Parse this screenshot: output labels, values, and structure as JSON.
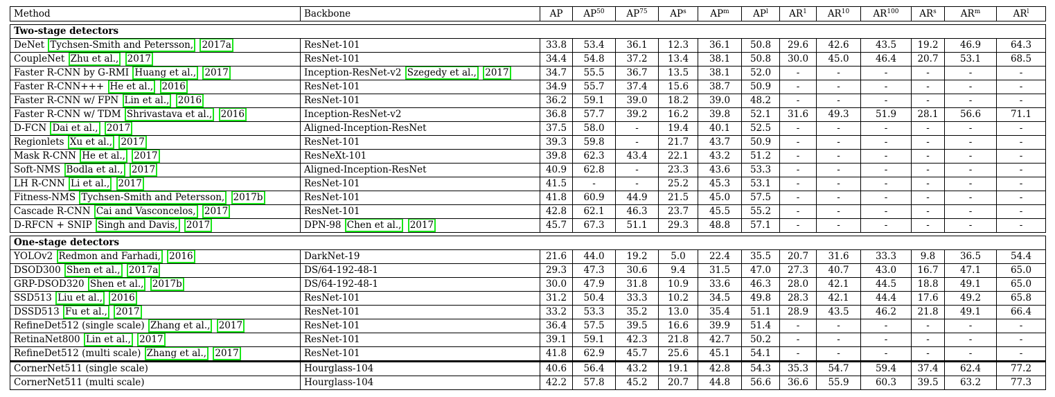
{
  "headers": {
    "method": "Method",
    "backbone": "Backbone",
    "metrics": [
      {
        "base": "AP",
        "sup": ""
      },
      {
        "base": "AP",
        "sup": "50"
      },
      {
        "base": "AP",
        "sup": "75"
      },
      {
        "base": "AP",
        "sup": "s"
      },
      {
        "base": "AP",
        "sup": "m"
      },
      {
        "base": "AP",
        "sup": "l"
      },
      {
        "base": "AR",
        "sup": "1"
      },
      {
        "base": "AR",
        "sup": "10"
      },
      {
        "base": "AR",
        "sup": "100"
      },
      {
        "base": "AR",
        "sup": "s"
      },
      {
        "base": "AR",
        "sup": "m"
      },
      {
        "base": "AR",
        "sup": "l"
      }
    ]
  },
  "groups": [
    {
      "title": "Two-stage detectors",
      "rows": [
        {
          "method": [
            "DeNet ",
            {
              "c": "Tychsen-Smith and Petersson,"
            },
            " ",
            {
              "c": "2017a"
            }
          ],
          "backbone": [
            "ResNet-101"
          ],
          "values": [
            "33.8",
            "53.4",
            "36.1",
            "12.3",
            "36.1",
            "50.8",
            "29.6",
            "42.6",
            "43.5",
            "19.2",
            "46.9",
            "64.3"
          ]
        },
        {
          "method": [
            "CoupleNet ",
            {
              "c": "Zhu et al.,"
            },
            " ",
            {
              "c": "2017"
            }
          ],
          "backbone": [
            "ResNet-101"
          ],
          "values": [
            "34.4",
            "54.8",
            "37.2",
            "13.4",
            "38.1",
            "50.8",
            "30.0",
            "45.0",
            "46.4",
            "20.7",
            "53.1",
            "68.5"
          ]
        },
        {
          "method": [
            "Faster R-CNN by G-RMI ",
            {
              "c": "Huang et al.,"
            },
            " ",
            {
              "c": "2017"
            }
          ],
          "backbone": [
            "Inception-ResNet-v2 ",
            {
              "c": "Szegedy et al.,"
            },
            " ",
            {
              "c": "2017"
            }
          ],
          "values": [
            "34.7",
            "55.5",
            "36.7",
            "13.5",
            "38.1",
            "52.0",
            "-",
            "-",
            "-",
            "-",
            "-",
            "-"
          ]
        },
        {
          "method": [
            "Faster R-CNN+++ ",
            {
              "c": "He et al.,"
            },
            " ",
            {
              "c": "2016"
            }
          ],
          "backbone": [
            "ResNet-101"
          ],
          "values": [
            "34.9",
            "55.7",
            "37.4",
            "15.6",
            "38.7",
            "50.9",
            "-",
            "-",
            "-",
            "-",
            "-",
            "-"
          ]
        },
        {
          "method": [
            "Faster R-CNN w/ FPN ",
            {
              "c": "Lin et al.,"
            },
            " ",
            {
              "c": "2016"
            }
          ],
          "backbone": [
            "ResNet-101"
          ],
          "values": [
            "36.2",
            "59.1",
            "39.0",
            "18.2",
            "39.0",
            "48.2",
            "-",
            "-",
            "-",
            "-",
            "-",
            "-"
          ]
        },
        {
          "method": [
            "Faster R-CNN w/ TDM ",
            {
              "c": "Shrivastava et al.,"
            },
            " ",
            {
              "c": "2016"
            }
          ],
          "backbone": [
            "Inception-ResNet-v2"
          ],
          "values": [
            "36.8",
            "57.7",
            "39.2",
            "16.2",
            "39.8",
            "52.1",
            "31.6",
            "49.3",
            "51.9",
            "28.1",
            "56.6",
            "71.1"
          ]
        },
        {
          "method": [
            "D-FCN ",
            {
              "c": "Dai et al.,"
            },
            " ",
            {
              "c": "2017"
            }
          ],
          "backbone": [
            "Aligned-Inception-ResNet"
          ],
          "values": [
            "37.5",
            "58.0",
            "-",
            "19.4",
            "40.1",
            "52.5",
            "-",
            "-",
            "-",
            "-",
            "-",
            "-"
          ]
        },
        {
          "method": [
            "Regionlets ",
            {
              "c": "Xu et al.,"
            },
            " ",
            {
              "c": "2017"
            }
          ],
          "backbone": [
            "ResNet-101"
          ],
          "values": [
            "39.3",
            "59.8",
            "-",
            "21.7",
            "43.7",
            "50.9",
            "-",
            "-",
            "-",
            "-",
            "-",
            "-"
          ]
        },
        {
          "method": [
            "Mask R-CNN ",
            {
              "c": "He et al.,"
            },
            " ",
            {
              "c": "2017"
            }
          ],
          "backbone": [
            "ResNeXt-101"
          ],
          "values": [
            "39.8",
            "62.3",
            "43.4",
            "22.1",
            "43.2",
            "51.2",
            "-",
            "-",
            "-",
            "-",
            "-",
            "-"
          ]
        },
        {
          "method": [
            "Soft-NMS ",
            {
              "c": "Bodla et al.,"
            },
            " ",
            {
              "c": "2017"
            }
          ],
          "backbone": [
            "Aligned-Inception-ResNet"
          ],
          "values": [
            "40.9",
            "62.8",
            "-",
            "23.3",
            "43.6",
            "53.3",
            "-",
            "-",
            "-",
            "-",
            "-",
            "-"
          ]
        },
        {
          "method": [
            "LH R-CNN ",
            {
              "c": "Li et al.,"
            },
            " ",
            {
              "c": "2017"
            }
          ],
          "backbone": [
            "ResNet-101"
          ],
          "values": [
            "41.5",
            "-",
            "-",
            "25.2",
            "45.3",
            "53.1",
            "-",
            "-",
            "-",
            "-",
            "-",
            "-"
          ]
        },
        {
          "method": [
            "Fitness-NMS ",
            {
              "c": "Tychsen-Smith and Petersson,"
            },
            " ",
            {
              "c": "2017b"
            }
          ],
          "backbone": [
            "ResNet-101"
          ],
          "values": [
            "41.8",
            "60.9",
            "44.9",
            "21.5",
            "45.0",
            "57.5",
            "-",
            "-",
            "-",
            "-",
            "-",
            "-"
          ]
        },
        {
          "method": [
            "Cascade R-CNN ",
            {
              "c": "Cai and Vasconcelos,"
            },
            " ",
            {
              "c": "2017"
            }
          ],
          "backbone": [
            "ResNet-101"
          ],
          "values": [
            "42.8",
            "62.1",
            "46.3",
            "23.7",
            "45.5",
            "55.2",
            "-",
            "-",
            "-",
            "-",
            "-",
            "-"
          ]
        },
        {
          "method": [
            "D-RFCN + SNIP ",
            {
              "c": "Singh and Davis,"
            },
            " ",
            {
              "c": "2017"
            }
          ],
          "backbone": [
            "DPN-98 ",
            {
              "c": "Chen et al.,"
            },
            " ",
            {
              "c": "2017"
            }
          ],
          "values": [
            "45.7",
            "67.3",
            "51.1",
            "29.3",
            "48.8",
            "57.1",
            "-",
            "-",
            "-",
            "-",
            "-",
            "-"
          ]
        }
      ]
    },
    {
      "title": "One-stage detectors",
      "rows": [
        {
          "method": [
            "YOLOv2 ",
            {
              "c": "Redmon and Farhadi,"
            },
            " ",
            {
              "c": "2016"
            }
          ],
          "backbone": [
            "DarkNet-19"
          ],
          "values": [
            "21.6",
            "44.0",
            "19.2",
            "5.0",
            "22.4",
            "35.5",
            "20.7",
            "31.6",
            "33.3",
            "9.8",
            "36.5",
            "54.4"
          ]
        },
        {
          "method": [
            "DSOD300 ",
            {
              "c": "Shen et al.,"
            },
            " ",
            {
              "c": "2017a"
            }
          ],
          "backbone": [
            "DS/64-192-48-1"
          ],
          "values": [
            "29.3",
            "47.3",
            "30.6",
            "9.4",
            "31.5",
            "47.0",
            "27.3",
            "40.7",
            "43.0",
            "16.7",
            "47.1",
            "65.0"
          ]
        },
        {
          "method": [
            "GRP-DSOD320 ",
            {
              "c": "Shen et al.,"
            },
            " ",
            {
              "c": "2017b"
            }
          ],
          "backbone": [
            "DS/64-192-48-1"
          ],
          "values": [
            "30.0",
            "47.9",
            "31.8",
            "10.9",
            "33.6",
            "46.3",
            "28.0",
            "42.1",
            "44.5",
            "18.8",
            "49.1",
            "65.0"
          ]
        },
        {
          "method": [
            "SSD513 ",
            {
              "c": "Liu et al.,"
            },
            " ",
            {
              "c": "2016"
            }
          ],
          "backbone": [
            "ResNet-101"
          ],
          "values": [
            "31.2",
            "50.4",
            "33.3",
            "10.2",
            "34.5",
            "49.8",
            "28.3",
            "42.1",
            "44.4",
            "17.6",
            "49.2",
            "65.8"
          ]
        },
        {
          "method": [
            "DSSD513 ",
            {
              "c": "Fu et al.,"
            },
            " ",
            {
              "c": "2017"
            }
          ],
          "backbone": [
            "ResNet-101"
          ],
          "values": [
            "33.2",
            "53.3",
            "35.2",
            "13.0",
            "35.4",
            "51.1",
            "28.9",
            "43.5",
            "46.2",
            "21.8",
            "49.1",
            "66.4"
          ]
        },
        {
          "method": [
            "RefineDet512 (single scale) ",
            {
              "c": "Zhang et al.,"
            },
            " ",
            {
              "c": "2017"
            }
          ],
          "backbone": [
            "ResNet-101"
          ],
          "values": [
            "36.4",
            "57.5",
            "39.5",
            "16.6",
            "39.9",
            "51.4",
            "-",
            "-",
            "-",
            "-",
            "-",
            "-"
          ]
        },
        {
          "method": [
            "RetinaNet800 ",
            {
              "c": "Lin et al.,"
            },
            " ",
            {
              "c": "2017"
            }
          ],
          "backbone": [
            "ResNet-101"
          ],
          "values": [
            "39.1",
            "59.1",
            "42.3",
            "21.8",
            "42.7",
            "50.2",
            "-",
            "-",
            "-",
            "-",
            "-",
            "-"
          ]
        },
        {
          "method": [
            "RefineDet512 (multi scale) ",
            {
              "c": "Zhang et al.,"
            },
            " ",
            {
              "c": "2017"
            }
          ],
          "backbone": [
            "ResNet-101"
          ],
          "values": [
            "41.8",
            "62.9",
            "45.7",
            "25.6",
            "45.1",
            "54.1",
            "-",
            "-",
            "-",
            "-",
            "-",
            "-"
          ]
        },
        {
          "method": [
            "CornerNet511 (single scale)"
          ],
          "backbone": [
            "Hourglass-104"
          ],
          "values": [
            "40.6",
            "56.4",
            "43.2",
            "19.1",
            "42.8",
            "54.3",
            "35.3",
            "54.7",
            "59.4",
            "37.4",
            "62.4",
            "77.2"
          ],
          "ours": true
        },
        {
          "method": [
            "CornerNet511 (multi scale)"
          ],
          "backbone": [
            "Hourglass-104"
          ],
          "values": [
            "42.2",
            "57.8",
            "45.2",
            "20.7",
            "44.8",
            "56.6",
            "36.6",
            "55.9",
            "60.3",
            "39.5",
            "63.2",
            "77.3"
          ],
          "ours": true
        }
      ]
    }
  ]
}
